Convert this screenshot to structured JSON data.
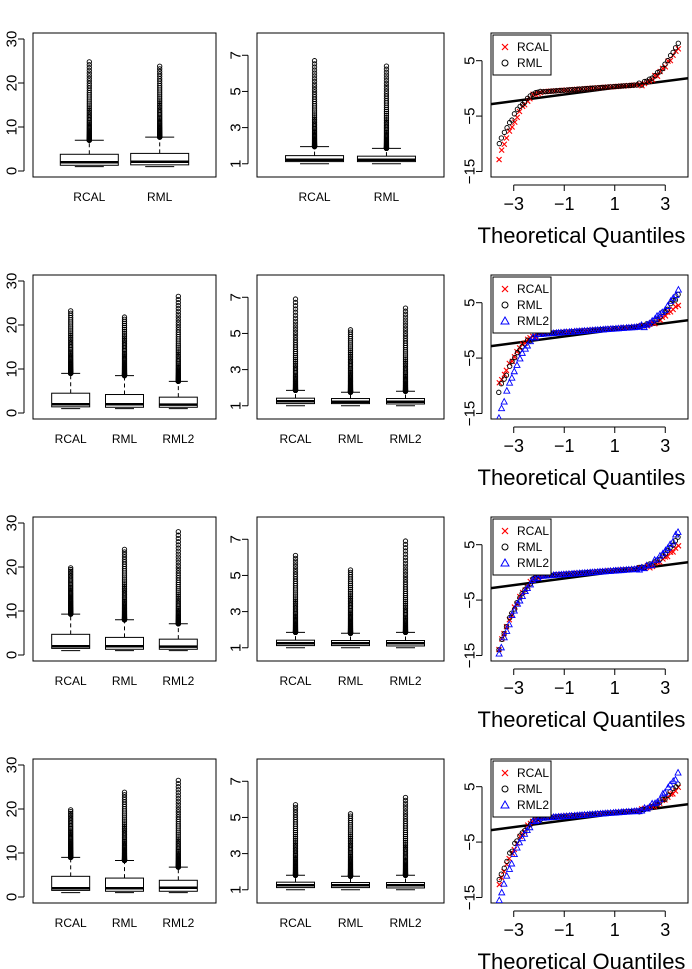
{
  "chart_data": [
    {
      "panel": "row1-boxplot-a",
      "type": "box",
      "categories": [
        "RCAL",
        "RML"
      ],
      "yticks": [
        "0",
        "10",
        "20",
        "30"
      ],
      "ylim": [
        0,
        30
      ],
      "boxes": [
        {
          "min": 1.0,
          "q1": 1.3,
          "median": 2.0,
          "q3": 3.8,
          "whisker_high": 7.0,
          "outlier_max": 24.8
        },
        {
          "min": 1.0,
          "q1": 1.4,
          "median": 2.1,
          "q3": 4.0,
          "whisker_high": 7.7,
          "outlier_max": 23.8
        }
      ]
    },
    {
      "panel": "row1-boxplot-b",
      "type": "box",
      "categories": [
        "RCAL",
        "RML"
      ],
      "yticks": [
        "1",
        "3",
        "5",
        "7"
      ],
      "ylim": [
        0.6,
        7.9
      ],
      "boxes": [
        {
          "min": 1.0,
          "q1": 1.12,
          "median": 1.22,
          "q3": 1.45,
          "whisker_high": 1.95,
          "outlier_max": 6.7
        },
        {
          "min": 1.0,
          "q1": 1.12,
          "median": 1.22,
          "q3": 1.42,
          "whisker_high": 1.85,
          "outlier_max": 6.4
        }
      ]
    },
    {
      "panel": "row1-qq",
      "type": "scatter",
      "xlabel": "Theoretical Quantiles",
      "xticks": [
        "−3",
        "−1",
        "1",
        "3"
      ],
      "yticks": [
        "−15",
        "−5",
        "5"
      ],
      "xlim": [
        -3.9,
        3.9
      ],
      "ylim": [
        -16,
        10
      ],
      "legend": [
        "RCAL",
        "RML"
      ],
      "series": [
        {
          "name": "RCAL",
          "marker": "x",
          "color": "#ff0000",
          "min": -13,
          "max": 8
        },
        {
          "name": "RML",
          "marker": "o",
          "color": "#000000",
          "min": -10,
          "max": 9
        }
      ]
    },
    {
      "panel": "row2-boxplot-a",
      "type": "box",
      "categories": [
        "RCAL",
        "RML",
        "RML2"
      ],
      "yticks": [
        "0",
        "10",
        "20",
        "30"
      ],
      "ylim": [
        0,
        30
      ],
      "boxes": [
        {
          "min": 1.0,
          "q1": 1.4,
          "median": 2.0,
          "q3": 4.5,
          "whisker_high": 9.0,
          "outlier_max": 23.2
        },
        {
          "min": 1.0,
          "q1": 1.3,
          "median": 2.0,
          "q3": 4.2,
          "whisker_high": 8.5,
          "outlier_max": 21.8
        },
        {
          "min": 1.0,
          "q1": 1.3,
          "median": 1.9,
          "q3": 3.6,
          "whisker_high": 7.2,
          "outlier_max": 26.5
        }
      ]
    },
    {
      "panel": "row2-boxplot-b",
      "type": "box",
      "categories": [
        "RCAL",
        "RML",
        "RML2"
      ],
      "yticks": [
        "1",
        "3",
        "5",
        "7"
      ],
      "ylim": [
        0.6,
        7.9
      ],
      "boxes": [
        {
          "min": 1.0,
          "q1": 1.12,
          "median": 1.25,
          "q3": 1.42,
          "whisker_high": 1.85,
          "outlier_max": 6.9
        },
        {
          "min": 1.0,
          "q1": 1.12,
          "median": 1.22,
          "q3": 1.4,
          "whisker_high": 1.75,
          "outlier_max": 5.2
        },
        {
          "min": 1.0,
          "q1": 1.1,
          "median": 1.22,
          "q3": 1.4,
          "whisker_high": 1.8,
          "outlier_max": 6.4
        }
      ]
    },
    {
      "panel": "row2-qq",
      "type": "scatter",
      "xlabel": "Theoretical Quantiles",
      "xticks": [
        "−3",
        "−1",
        "1",
        "3"
      ],
      "yticks": [
        "−15",
        "−5",
        "5"
      ],
      "xlim": [
        -3.9,
        3.9
      ],
      "ylim": [
        -16,
        10
      ],
      "legend": [
        "RCAL",
        "RML",
        "RML2"
      ],
      "series": [
        {
          "name": "RCAL",
          "marker": "x",
          "color": "#ff0000",
          "min": -10,
          "max": 5
        },
        {
          "name": "RML",
          "marker": "o",
          "color": "#000000",
          "min": -11,
          "max": 7
        },
        {
          "name": "RML2",
          "marker": "triangle",
          "color": "#0000ff",
          "min": -16,
          "max": 8
        }
      ]
    },
    {
      "panel": "row3-boxplot-a",
      "type": "box",
      "categories": [
        "RCAL",
        "RML",
        "RML2"
      ],
      "yticks": [
        "0",
        "10",
        "20",
        "30"
      ],
      "ylim": [
        0,
        30
      ],
      "boxes": [
        {
          "min": 1.0,
          "q1": 1.5,
          "median": 2.0,
          "q3": 4.7,
          "whisker_high": 9.3,
          "outlier_max": 19.8
        },
        {
          "min": 1.0,
          "q1": 1.3,
          "median": 2.0,
          "q3": 4.0,
          "whisker_high": 8.0,
          "outlier_max": 24.0
        },
        {
          "min": 1.0,
          "q1": 1.3,
          "median": 1.9,
          "q3": 3.6,
          "whisker_high": 7.1,
          "outlier_max": 28.0
        }
      ]
    },
    {
      "panel": "row3-boxplot-b",
      "type": "box",
      "categories": [
        "RCAL",
        "RML",
        "RML2"
      ],
      "yticks": [
        "1",
        "3",
        "5",
        "7"
      ],
      "ylim": [
        0.6,
        7.9
      ],
      "boxes": [
        {
          "min": 1.0,
          "q1": 1.12,
          "median": 1.25,
          "q3": 1.42,
          "whisker_high": 1.85,
          "outlier_max": 6.1
        },
        {
          "min": 1.0,
          "q1": 1.12,
          "median": 1.25,
          "q3": 1.4,
          "whisker_high": 1.8,
          "outlier_max": 5.3
        },
        {
          "min": 1.0,
          "q1": 1.1,
          "median": 1.25,
          "q3": 1.4,
          "whisker_high": 1.85,
          "outlier_max": 6.9
        }
      ]
    },
    {
      "panel": "row3-qq",
      "type": "scatter",
      "xlabel": "Theoretical Quantiles",
      "xticks": [
        "−3",
        "−1",
        "1",
        "3"
      ],
      "yticks": [
        "−15",
        "−5",
        "5"
      ],
      "xlim": [
        -3.9,
        3.9
      ],
      "ylim": [
        -16,
        10
      ],
      "legend": [
        "RCAL",
        "RML",
        "RML2"
      ],
      "series": [
        {
          "name": "RCAL",
          "marker": "x",
          "color": "#ff0000",
          "min": -14,
          "max": 5
        },
        {
          "name": "RML",
          "marker": "o",
          "color": "#000000",
          "min": -14,
          "max": 7
        },
        {
          "name": "RML2",
          "marker": "triangle",
          "color": "#0000ff",
          "min": -15,
          "max": 8
        }
      ]
    },
    {
      "panel": "row4-boxplot-a",
      "type": "box",
      "categories": [
        "RCAL",
        "RML",
        "RML2"
      ],
      "yticks": [
        "0",
        "10",
        "20",
        "30"
      ],
      "ylim": [
        0,
        30
      ],
      "boxes": [
        {
          "min": 1.0,
          "q1": 1.5,
          "median": 2.0,
          "q3": 4.7,
          "whisker_high": 9.0,
          "outlier_max": 19.8
        },
        {
          "min": 1.0,
          "q1": 1.3,
          "median": 2.0,
          "q3": 4.3,
          "whisker_high": 8.3,
          "outlier_max": 23.8
        },
        {
          "min": 1.0,
          "q1": 1.3,
          "median": 2.1,
          "q3": 3.8,
          "whisker_high": 6.8,
          "outlier_max": 26.5
        }
      ]
    },
    {
      "panel": "row4-boxplot-b",
      "type": "box",
      "categories": [
        "RCAL",
        "RML",
        "RML2"
      ],
      "yticks": [
        "1",
        "3",
        "5",
        "7"
      ],
      "ylim": [
        0.6,
        7.9
      ],
      "boxes": [
        {
          "min": 1.0,
          "q1": 1.12,
          "median": 1.25,
          "q3": 1.42,
          "whisker_high": 1.8,
          "outlier_max": 5.7
        },
        {
          "min": 1.0,
          "q1": 1.12,
          "median": 1.25,
          "q3": 1.4,
          "whisker_high": 1.75,
          "outlier_max": 5.2
        },
        {
          "min": 1.0,
          "q1": 1.1,
          "median": 1.25,
          "q3": 1.4,
          "whisker_high": 1.8,
          "outlier_max": 6.1
        }
      ]
    },
    {
      "panel": "row4-qq",
      "type": "scatter",
      "xlabel": "Theoretical Quantiles",
      "xticks": [
        "−3",
        "−1",
        "1",
        "3"
      ],
      "yticks": [
        "−15",
        "−5",
        "5"
      ],
      "xlim": [
        -3.9,
        3.9
      ],
      "ylim": [
        -16,
        10
      ],
      "legend": [
        "RCAL",
        "RML",
        "RML2"
      ],
      "series": [
        {
          "name": "RCAL",
          "marker": "x",
          "color": "#ff0000",
          "min": -13,
          "max": 5
        },
        {
          "name": "RML",
          "marker": "o",
          "color": "#000000",
          "min": -12,
          "max": 6
        },
        {
          "name": "RML2",
          "marker": "triangle",
          "color": "#0000ff",
          "min": -16,
          "max": 8
        }
      ]
    }
  ],
  "colors": {
    "RCAL": "#ff0000",
    "RML": "#000000",
    "RML2": "#0000ff"
  }
}
